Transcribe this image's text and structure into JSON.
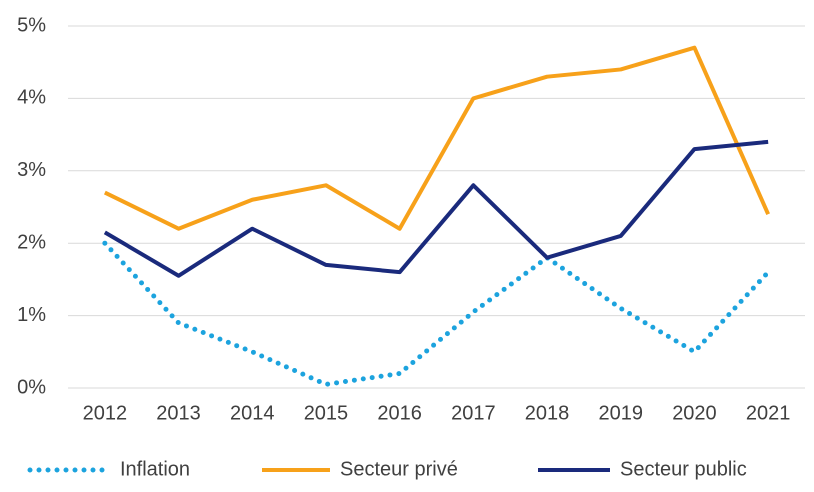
{
  "chart_data": {
    "type": "line",
    "categories": [
      "2012",
      "2013",
      "2014",
      "2015",
      "2016",
      "2017",
      "2018",
      "2019",
      "2020",
      "2021"
    ],
    "series": [
      {
        "name": "Inflation",
        "color": "#1ca3de",
        "dash": "dotted",
        "values": [
          2.0,
          0.9,
          0.5,
          0.05,
          0.2,
          1.05,
          1.8,
          1.1,
          0.5,
          1.6
        ]
      },
      {
        "name": "Secteur privé",
        "color": "#f7a11a",
        "dash": "solid",
        "values": [
          2.7,
          2.2,
          2.6,
          2.8,
          2.2,
          4.0,
          4.3,
          4.4,
          4.7,
          2.4
        ]
      },
      {
        "name": "Secteur public",
        "color": "#1a2a7c",
        "dash": "solid",
        "values": [
          2.15,
          1.55,
          2.2,
          1.7,
          1.6,
          2.8,
          1.8,
          2.1,
          3.3,
          3.4
        ]
      }
    ],
    "ylim": [
      0,
      5
    ],
    "yticks": [
      {
        "value": 0,
        "label": "0%"
      },
      {
        "value": 1,
        "label": "1%"
      },
      {
        "value": 2,
        "label": "2%"
      },
      {
        "value": 3,
        "label": "3%"
      },
      {
        "value": 4,
        "label": "4%"
      },
      {
        "value": 5,
        "label": "5%"
      }
    ],
    "grid": true,
    "legend": "bottom"
  }
}
